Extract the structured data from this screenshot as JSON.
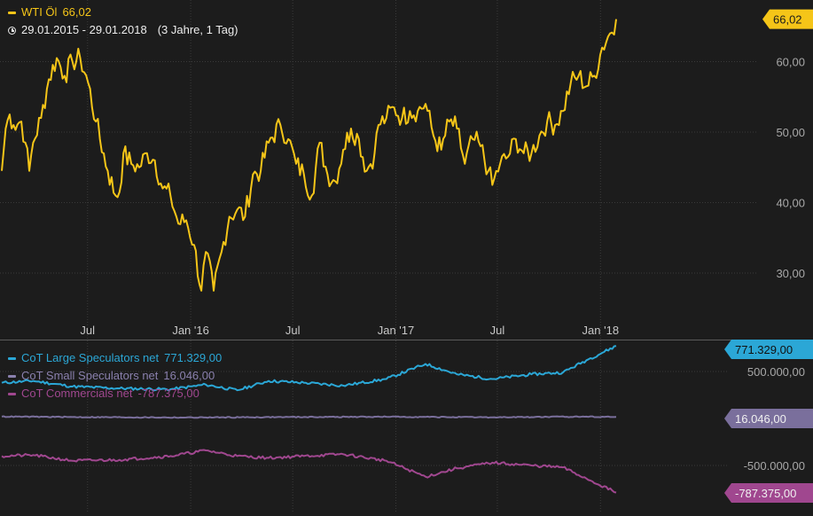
{
  "header": {
    "instrument_label": "WTI Öl",
    "instrument_value": "66,02",
    "date_range": "29.01.2015 - 29.01.2018",
    "period": "(3 Jahre, 1 Tag)"
  },
  "cot_legend": [
    {
      "label": "CoT Large Speculators net",
      "value": "771.329,00"
    },
    {
      "label": "CoT Small Speculators net",
      "value": "16.046,00"
    },
    {
      "label": "CoT Commercials net",
      "value": "-787.375,00"
    }
  ],
  "colors": {
    "background": "#1c1c1c",
    "grid": "#3a3a3a",
    "wti": "#f5c518",
    "large": "#2ba7d6",
    "small": "#7a6f9c",
    "commercials": "#a0478f"
  },
  "chart_data": [
    {
      "type": "line",
      "series": [
        {
          "name": "WTI Öl",
          "last_label": "66,02"
        }
      ],
      "x_ticks": [
        "Jul",
        "Jan '16",
        "Jul",
        "Jan '17",
        "Jul",
        "Jan '18"
      ],
      "y_ticks": [
        "30,00",
        "40,00",
        "50,00",
        "60,00"
      ],
      "ylim": [
        25,
        70
      ],
      "x_range": [
        "29.01.2015",
        "29.01.2018"
      ],
      "points": [
        [
          "2015-01-29",
          44.5
        ],
        [
          "2015-02-05",
          50.5
        ],
        [
          "2015-02-12",
          52.5
        ],
        [
          "2015-02-19",
          51
        ],
        [
          "2015-03-05",
          51.5
        ],
        [
          "2015-03-12",
          48.5
        ],
        [
          "2015-03-19",
          44.5
        ],
        [
          "2015-03-26",
          48.5
        ],
        [
          "2015-04-09",
          52
        ],
        [
          "2015-04-23",
          57.5
        ],
        [
          "2015-05-07",
          60.5
        ],
        [
          "2015-05-21",
          58
        ],
        [
          "2015-06-04",
          60
        ],
        [
          "2015-06-18",
          60.5
        ],
        [
          "2015-07-02",
          57
        ],
        [
          "2015-07-16",
          51.5
        ],
        [
          "2015-08-06",
          44.5
        ],
        [
          "2015-08-20",
          41
        ],
        [
          "2015-08-27",
          41.5
        ],
        [
          "2015-09-03",
          47
        ],
        [
          "2015-09-17",
          45.5
        ],
        [
          "2015-10-01",
          45
        ],
        [
          "2015-10-15",
          47
        ],
        [
          "2015-10-29",
          46
        ],
        [
          "2015-11-12",
          42
        ],
        [
          "2015-11-26",
          41
        ],
        [
          "2015-12-10",
          37
        ],
        [
          "2015-12-24",
          37.5
        ],
        [
          "2016-01-07",
          34
        ],
        [
          "2016-01-20",
          27.5
        ],
        [
          "2016-01-28",
          33
        ],
        [
          "2016-02-11",
          27.5
        ],
        [
          "2016-02-25",
          33
        ],
        [
          "2016-03-10",
          38
        ],
        [
          "2016-03-24",
          39
        ],
        [
          "2016-04-07",
          38
        ],
        [
          "2016-04-21",
          44
        ],
        [
          "2016-05-05",
          44.5
        ],
        [
          "2016-05-19",
          48.5
        ],
        [
          "2016-06-09",
          51
        ],
        [
          "2016-06-23",
          49
        ],
        [
          "2016-07-07",
          45.5
        ],
        [
          "2016-07-21",
          44
        ],
        [
          "2016-08-04",
          41
        ],
        [
          "2016-08-18",
          48.5
        ],
        [
          "2016-09-01",
          44
        ],
        [
          "2016-09-15",
          43
        ],
        [
          "2016-09-29",
          47.5
        ],
        [
          "2016-10-13",
          50.5
        ],
        [
          "2016-10-27",
          49
        ],
        [
          "2016-11-10",
          44.5
        ],
        [
          "2016-11-24",
          47
        ],
        [
          "2016-12-01",
          51
        ],
        [
          "2016-12-15",
          52
        ],
        [
          "2016-12-29",
          53.5
        ],
        [
          "2017-01-12",
          52
        ],
        [
          "2017-01-26",
          53
        ],
        [
          "2017-02-09",
          53
        ],
        [
          "2017-02-23",
          54
        ],
        [
          "2017-03-09",
          49.5
        ],
        [
          "2017-03-23",
          47.5
        ],
        [
          "2017-04-06",
          51.5
        ],
        [
          "2017-04-20",
          50.5
        ],
        [
          "2017-05-04",
          45.5
        ],
        [
          "2017-05-18",
          49
        ],
        [
          "2017-06-01",
          48
        ],
        [
          "2017-06-15",
          44.5
        ],
        [
          "2017-06-22",
          42.5
        ],
        [
          "2017-07-06",
          45.5
        ],
        [
          "2017-07-20",
          46.5
        ],
        [
          "2017-08-03",
          49
        ],
        [
          "2017-08-17",
          47
        ],
        [
          "2017-08-31",
          47
        ],
        [
          "2017-09-14",
          49.5
        ],
        [
          "2017-09-28",
          51.5
        ],
        [
          "2017-10-12",
          51
        ],
        [
          "2017-10-26",
          53
        ],
        [
          "2017-11-09",
          57
        ],
        [
          "2017-11-23",
          58
        ],
        [
          "2017-12-07",
          56.5
        ],
        [
          "2017-12-21",
          58
        ],
        [
          "2018-01-04",
          62
        ],
        [
          "2018-01-18",
          64
        ],
        [
          "2018-01-29",
          66.02
        ]
      ]
    },
    {
      "type": "line",
      "y_ticks": [
        "500.000,00",
        "-500.000,00"
      ],
      "ylim": [
        -1000000,
        1000000
      ],
      "x_range": [
        "29.01.2015",
        "29.01.2018"
      ],
      "series": [
        {
          "name": "CoT Large Speculators net",
          "last_label": "771.329,00",
          "points": [
            [
              "2015-01-29",
              380000
            ],
            [
              "2015-03-26",
              400000
            ],
            [
              "2015-06-04",
              340000
            ],
            [
              "2015-08-27",
              320000
            ],
            [
              "2015-11-26",
              310000
            ],
            [
              "2016-01-28",
              360000
            ],
            [
              "2016-03-24",
              300000
            ],
            [
              "2016-05-19",
              400000
            ],
            [
              "2016-07-21",
              380000
            ],
            [
              "2016-09-29",
              350000
            ],
            [
              "2016-12-15",
              420000
            ],
            [
              "2017-02-23",
              580000
            ],
            [
              "2017-04-20",
              470000
            ],
            [
              "2017-06-22",
              420000
            ],
            [
              "2017-08-31",
              470000
            ],
            [
              "2017-10-26",
              490000
            ],
            [
              "2017-12-07",
              620000
            ],
            [
              "2018-01-29",
              771329
            ]
          ]
        },
        {
          "name": "CoT Small Speculators net",
          "last_label": "16.046,00",
          "points": [
            [
              "2015-01-29",
              20000
            ],
            [
              "2015-06-04",
              15000
            ],
            [
              "2015-12-24",
              10000
            ],
            [
              "2016-06-23",
              15000
            ],
            [
              "2016-12-15",
              18000
            ],
            [
              "2017-06-22",
              12000
            ],
            [
              "2017-12-07",
              20000
            ],
            [
              "2018-01-29",
              16046
            ]
          ]
        },
        {
          "name": "CoT Commercials net",
          "last_label": "-787.375,00",
          "points": [
            [
              "2015-01-29",
              -400000
            ],
            [
              "2015-03-26",
              -390000
            ],
            [
              "2015-06-04",
              -450000
            ],
            [
              "2015-08-27",
              -440000
            ],
            [
              "2015-11-26",
              -400000
            ],
            [
              "2016-01-28",
              -340000
            ],
            [
              "2016-03-24",
              -400000
            ],
            [
              "2016-05-19",
              -420000
            ],
            [
              "2016-07-21",
              -400000
            ],
            [
              "2016-09-29",
              -380000
            ],
            [
              "2016-12-15",
              -450000
            ],
            [
              "2017-02-23",
              -620000
            ],
            [
              "2017-04-20",
              -530000
            ],
            [
              "2017-06-22",
              -470000
            ],
            [
              "2017-08-31",
              -500000
            ],
            [
              "2017-10-26",
              -520000
            ],
            [
              "2017-12-07",
              -640000
            ],
            [
              "2018-01-29",
              -787375
            ]
          ]
        }
      ]
    }
  ]
}
